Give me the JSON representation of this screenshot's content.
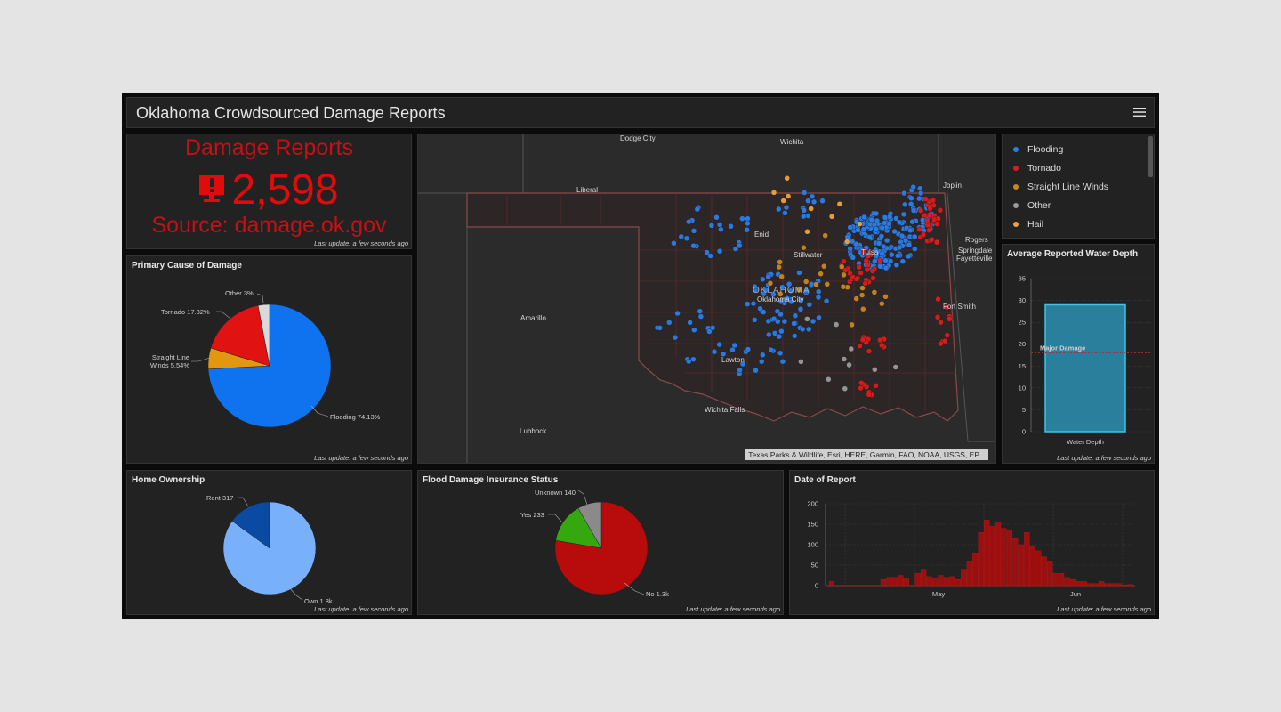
{
  "header": {
    "title": "Oklahoma Crowdsourced Damage Reports"
  },
  "indicator": {
    "title": "Damage Reports",
    "value": "2,598",
    "source": "Source: damage.ok.gov",
    "update": "Last update: a few seconds ago",
    "color": "#e10b0b"
  },
  "primary_cause": {
    "title": "Primary Cause of Damage",
    "update": "Last update: a few seconds ago",
    "labels": {
      "other": "Other 3%",
      "tornado": "Tornado 17.32%",
      "slw_line1": "Straight Line",
      "slw_line2": "Winds 5.54%",
      "flooding": "Flooding 74.13%"
    }
  },
  "legend": {
    "items": [
      {
        "label": "Flooding",
        "color": "#2b7de9"
      },
      {
        "label": "Tornado",
        "color": "#e01b1b"
      },
      {
        "label": "Straight Line Winds",
        "color": "#c9861e"
      },
      {
        "label": "Other",
        "color": "#9a9a9a"
      },
      {
        "label": "Hail",
        "color": "#f0a23a"
      }
    ]
  },
  "water_depth": {
    "title": "Average Reported Water Depth",
    "update": "Last update: a few seconds ago",
    "annotation": "Major Damage"
  },
  "map": {
    "labels": {
      "dodge_city": "Dodge City",
      "wichita": "Wichita",
      "liberal": "Liberal",
      "joplin": "Joplin",
      "enid": "Enid",
      "rogers": "Rogers",
      "springdale": "Springdale",
      "fayetteville": "Fayetteville",
      "stillwater": "Stillwater",
      "tulsa": "Tulsa",
      "oklahoma": "OKLAHOMA",
      "oklahoma_city": "Oklahoma City",
      "amarillo": "Amarillo",
      "fort_smith": "Fort Smith",
      "lawton": "Lawton",
      "wichita_falls": "Wichita Falls",
      "lubbock": "Lubbock"
    },
    "attribution": "Texas Parks & Wildlife, Esri, HERE, Garmin, FAO, NOAA, USGS, EP..."
  },
  "home_ownership": {
    "title": "Home Ownership",
    "update": "Last update: a few seconds ago",
    "labels": {
      "rent": "Rent 317",
      "own": "Own 1.8k"
    }
  },
  "flood_insurance": {
    "title": "Flood Damage Insurance Status",
    "update": "Last update: a few seconds ago",
    "labels": {
      "unknown": "Unknown 140",
      "yes": "Yes 233",
      "no": "No 1.3k"
    }
  },
  "date_report": {
    "title": "Date of Report",
    "update": "Last update: a few seconds ago"
  },
  "chart_data": [
    {
      "type": "pie",
      "title": "Primary Cause of Damage",
      "categories": [
        "Flooding",
        "Straight Line Winds",
        "Tornado",
        "Other"
      ],
      "values": [
        74.13,
        5.54,
        17.32,
        3
      ],
      "colors": [
        "#0f73f0",
        "#e3970e",
        "#e01212",
        "#d9d9d9"
      ]
    },
    {
      "type": "bar",
      "title": "Average Reported Water Depth",
      "categories": [
        "Water Depth"
      ],
      "values": [
        29
      ],
      "ylim": [
        0,
        35
      ],
      "yticks": [
        0,
        5,
        10,
        15,
        20,
        25,
        30,
        35
      ],
      "reference_line": {
        "label": "Major Damage",
        "value": 18
      },
      "color": "#2a7f9c"
    },
    {
      "type": "pie",
      "title": "Home Ownership",
      "categories": [
        "Own",
        "Rent"
      ],
      "values": [
        1800,
        317
      ],
      "colors": [
        "#79b0fb",
        "#0a4aa3"
      ]
    },
    {
      "type": "pie",
      "title": "Flood Damage Insurance Status",
      "categories": [
        "No",
        "Yes",
        "Unknown"
      ],
      "values": [
        1300,
        233,
        140
      ],
      "colors": [
        "#b80c0c",
        "#36a80f",
        "#8a8a8a"
      ]
    },
    {
      "type": "bar",
      "title": "Date of Report",
      "ylim": [
        0,
        200
      ],
      "yticks": [
        0,
        50,
        100,
        150,
        200
      ],
      "xticks": [
        "May",
        "Jun"
      ],
      "values": [
        10,
        0,
        0,
        0,
        0,
        0,
        0,
        0,
        0,
        15,
        20,
        20,
        25,
        18,
        0,
        30,
        40,
        22,
        18,
        25,
        20,
        22,
        15,
        40,
        60,
        80,
        130,
        160,
        145,
        155,
        140,
        135,
        115,
        100,
        130,
        95,
        85,
        70,
        60,
        30,
        30,
        20,
        15,
        10,
        10,
        5,
        5,
        10,
        5,
        5,
        5,
        2,
        3
      ],
      "color": "#9d0f0f"
    }
  ]
}
